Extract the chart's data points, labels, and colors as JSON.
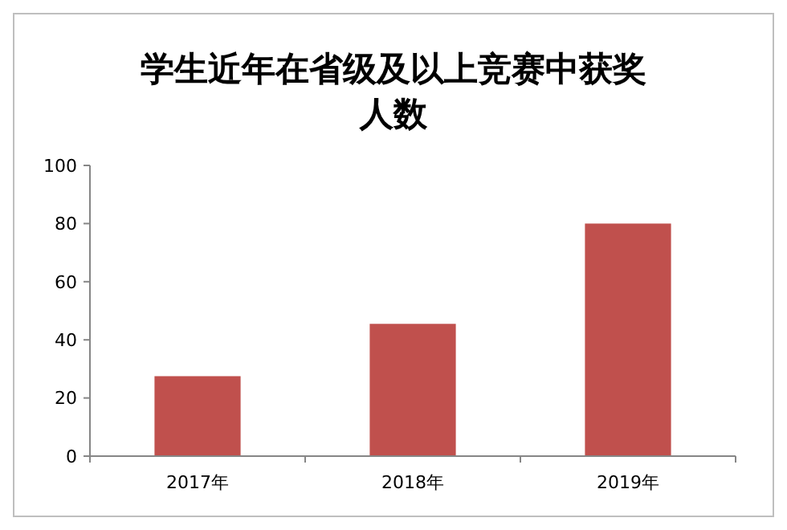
{
  "chart_data": {
    "type": "bar",
    "title": "学生近年在省级及以上竞赛中获奖人数",
    "categories": [
      "2017年",
      "2018年",
      "2019年"
    ],
    "values": [
      27.5,
      45.5,
      80
    ],
    "color": "#c0504d",
    "ylim": [
      0,
      100
    ],
    "yticks": [
      0,
      20,
      40,
      60,
      80,
      100
    ],
    "grid": false
  }
}
